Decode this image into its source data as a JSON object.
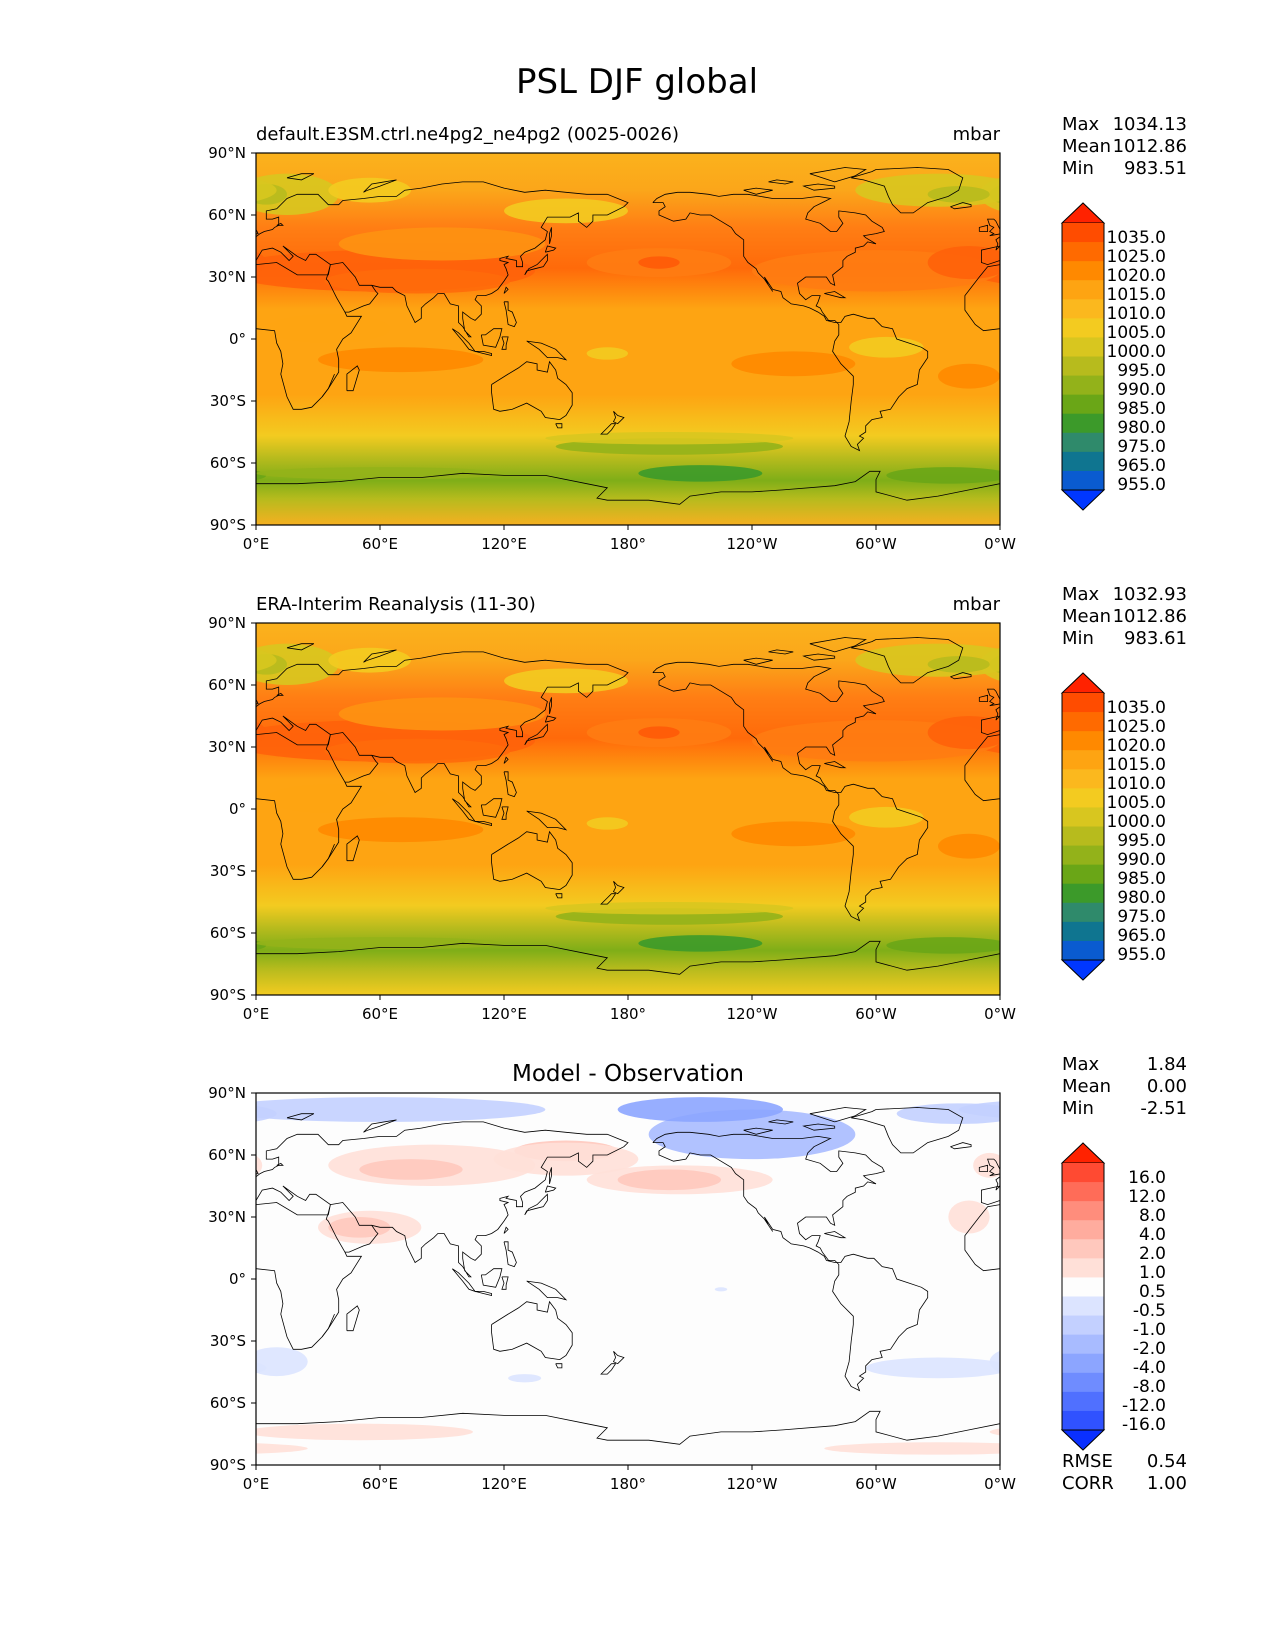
{
  "figure": {
    "title": "PSL DJF global"
  },
  "axes": {
    "lon_ticks": [
      "0°E",
      "60°E",
      "120°E",
      "180°",
      "120°W",
      "60°W",
      "0°W"
    ],
    "lat_ticks": [
      "90°N",
      "60°N",
      "30°N",
      "0°",
      "30°S",
      "60°S",
      "90°S"
    ]
  },
  "panels": [
    {
      "left_title": "default.E3SM.ctrl.ne4pg2_ne4pg2 (0025-0026)",
      "center_title": "",
      "units": "mbar",
      "stats": [
        {
          "label": "Max",
          "value": "1034.13"
        },
        {
          "label": "Mean",
          "value": "1012.86"
        },
        {
          "label": "Min",
          "value": "983.51"
        }
      ],
      "colorbar": "abs",
      "field": "model"
    },
    {
      "left_title": "ERA-Interim Reanalysis (11-30)",
      "center_title": "",
      "units": "mbar",
      "stats": [
        {
          "label": "Max",
          "value": "1032.93"
        },
        {
          "label": "Mean",
          "value": "1012.86"
        },
        {
          "label": "Min",
          "value": "983.61"
        }
      ],
      "colorbar": "abs",
      "field": "obs"
    },
    {
      "left_title": "",
      "center_title": "Model - Observation",
      "units": "",
      "stats": [
        {
          "label": "Max",
          "value": "1.84"
        },
        {
          "label": "Mean",
          "value": "0.00"
        },
        {
          "label": "Min",
          "value": "-2.51"
        }
      ],
      "extra_stats": [
        {
          "label": "RMSE",
          "value": "0.54"
        },
        {
          "label": "CORR",
          "value": "1.00"
        }
      ],
      "colorbar": "diff",
      "field": "diff"
    }
  ],
  "colorbars": {
    "abs": {
      "labels": [
        "1035.0",
        "1025.0",
        "1020.0",
        "1015.0",
        "1010.0",
        "1005.0",
        "1000.0",
        "995.0",
        "990.0",
        "985.0",
        "980.0",
        "975.0",
        "965.0",
        "955.0"
      ],
      "colors": [
        "#ff2200",
        "#ff4c00",
        "#ff6a00",
        "#ff8900",
        "#fea412",
        "#fbb81e",
        "#f3cb20",
        "#d8c61f",
        "#b7bb1d",
        "#93b21a",
        "#6aa617",
        "#3c9a2a",
        "#2f8a6b",
        "#0f7590",
        "#0a5bd0",
        "#0037ff"
      ]
    },
    "diff": {
      "labels": [
        "16.0",
        "12.0",
        "8.0",
        "4.0",
        "2.0",
        "1.0",
        "0.5",
        "-0.5",
        "-1.0",
        "-2.0",
        "-4.0",
        "-8.0",
        "-12.0",
        "-16.0"
      ],
      "colors": [
        "#ff2200",
        "#ff4a32",
        "#ff6c58",
        "#ff8d7c",
        "#ffac9e",
        "#ffc8bd",
        "#ffe0d8",
        "#fdfdfd",
        "#dce4ff",
        "#c3d0ff",
        "#a8bbff",
        "#8ca5ff",
        "#6f8cff",
        "#5070ff",
        "#3052ff",
        "#0a30ff"
      ]
    }
  }
}
